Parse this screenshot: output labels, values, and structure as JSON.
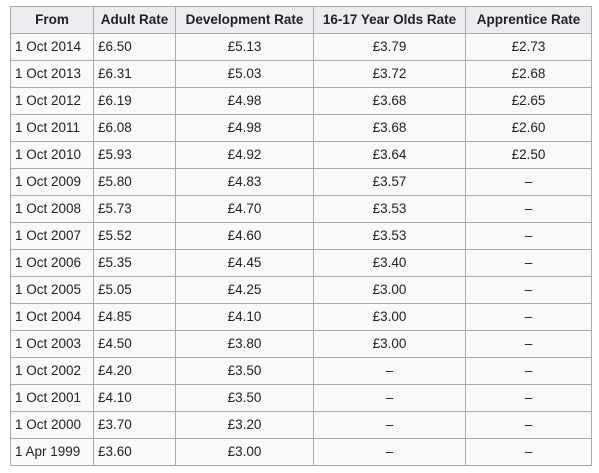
{
  "table": {
    "headers": [
      "From",
      "Adult Rate",
      "Development Rate",
      "16-17 Year Olds Rate",
      "Apprentice Rate"
    ],
    "rows": [
      [
        "1 Oct 2014",
        "£6.50",
        "£5.13",
        "£3.79",
        "£2.73"
      ],
      [
        "1 Oct 2013",
        "£6.31",
        "£5.03",
        "£3.72",
        "£2.68"
      ],
      [
        "1 Oct 2012",
        "£6.19",
        "£4.98",
        "£3.68",
        "£2.65"
      ],
      [
        "1 Oct 2011",
        "£6.08",
        "£4.98",
        "£3.68",
        "£2.60"
      ],
      [
        "1 Oct 2010",
        "£5.93",
        "£4.92",
        "£3.64",
        "£2.50"
      ],
      [
        "1 Oct 2009",
        "£5.80",
        "£4.83",
        "£3.57",
        "–"
      ],
      [
        "1 Oct 2008",
        "£5.73",
        "£4.70",
        "£3.53",
        "–"
      ],
      [
        "1 Oct 2007",
        "£5.52",
        "£4.60",
        "£3.53",
        "–"
      ],
      [
        "1 Oct 2006",
        "£5.35",
        "£4.45",
        "£3.40",
        "–"
      ],
      [
        "1 Oct 2005",
        "£5.05",
        "£4.25",
        "£3.00",
        "–"
      ],
      [
        "1 Oct 2004",
        "£4.85",
        "£4.10",
        "£3.00",
        "–"
      ],
      [
        "1 Oct 2003",
        "£4.50",
        "£3.80",
        "£3.00",
        "–"
      ],
      [
        "1 Oct 2002",
        "£4.20",
        "£3.50",
        "–",
        "–"
      ],
      [
        "1 Oct 2001",
        "£4.10",
        "£3.50",
        "–",
        "–"
      ],
      [
        "1 Oct 2000",
        "£3.70",
        "£3.20",
        "–",
        "–"
      ],
      [
        "1 Apr 1999",
        "£3.60",
        "£3.00",
        "–",
        "–"
      ]
    ]
  },
  "colors": {
    "header_bg": "#eaecf0",
    "cell_bg": "#f9f9f9",
    "border": "#aaaaaa",
    "text": "#222222"
  }
}
